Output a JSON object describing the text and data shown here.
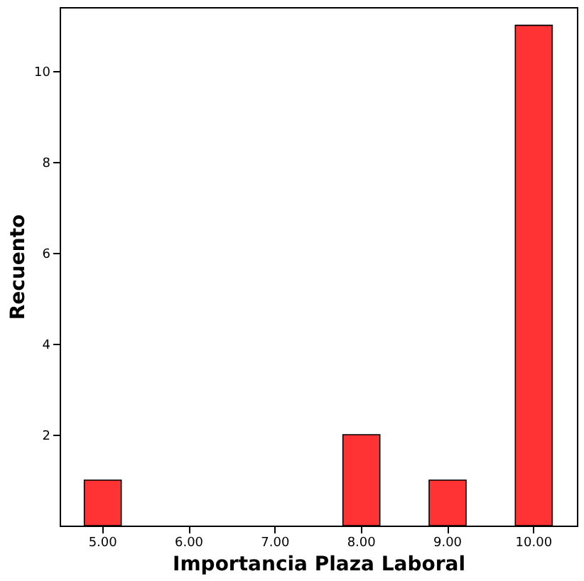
{
  "chart_data": {
    "type": "bar",
    "xlabel": "Importancia  Plaza  Laboral",
    "ylabel": "Recuento",
    "categories": [
      "5.00",
      "6.00",
      "7.00",
      "8.00",
      "9.00",
      "10.00"
    ],
    "values": [
      1,
      0,
      0,
      2,
      1,
      11
    ],
    "color": "#ff3333",
    "ylim": [
      0,
      11.4
    ],
    "yticks": [
      2,
      4,
      6,
      8,
      10
    ],
    "grid": false
  }
}
